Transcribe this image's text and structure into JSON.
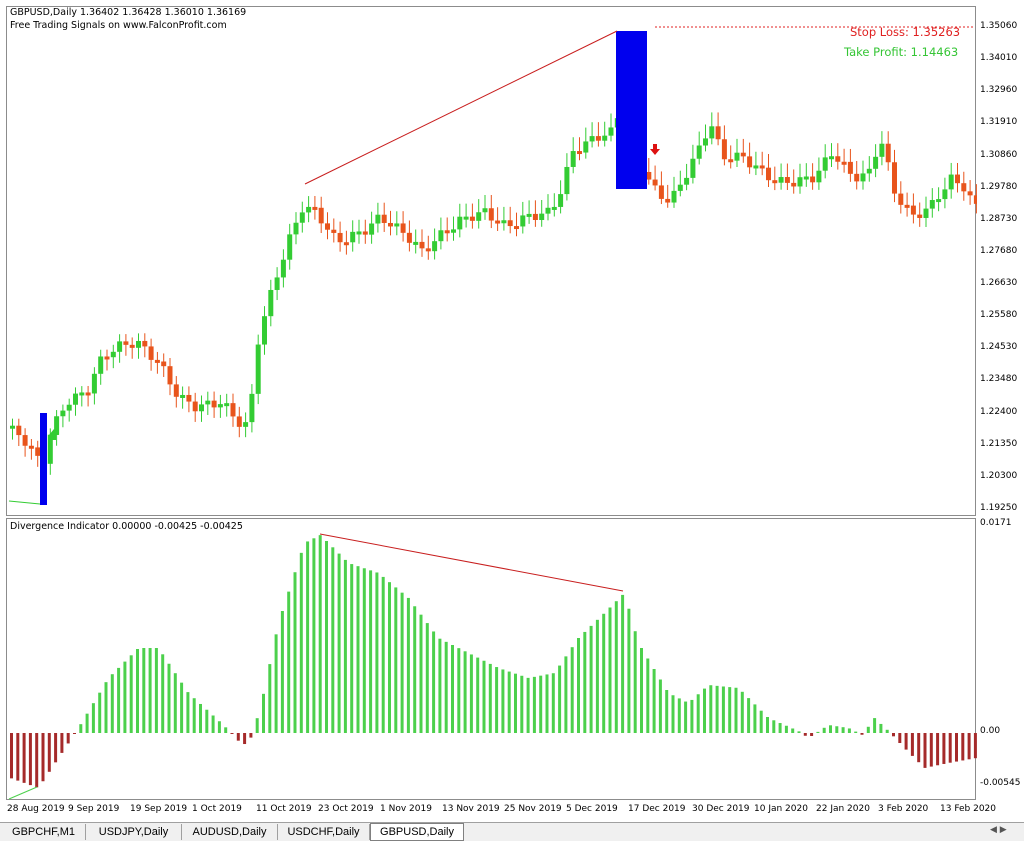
{
  "main_chart": {
    "symbol_line": "GBPUSD,Daily  1.36402 1.36428 1.36010 1.36169",
    "signal_line": "Free Trading Signals on www.FalconProfit.com",
    "stop_loss": "Stop Loss: 1.35263",
    "take_profit": "Take Profit: 1.14463",
    "price_ticks": [
      "1.35060",
      "1.34010",
      "1.32960",
      "1.31910",
      "1.30860",
      "1.29780",
      "1.28730",
      "1.27680",
      "1.26630",
      "1.25580",
      "1.24530",
      "1.23480",
      "1.22400",
      "1.21350",
      "1.20300",
      "1.19250"
    ],
    "colors": {
      "bull": "#33cc33",
      "bear": "#e8541c",
      "signal_box": "#0000ee",
      "trendline": "#c81e1e"
    }
  },
  "indicator": {
    "header": "Divergence Indicator 0.00000 -0.00425 -0.00425",
    "ticks": [
      "0.0171",
      "0.00",
      "-0.00545"
    ],
    "colors": {
      "positive": "#4cd04c",
      "negative": "#a52a2a"
    }
  },
  "time_axis": [
    "28 Aug 2019",
    "9 Sep 2019",
    "19 Sep 2019",
    "1 Oct 2019",
    "11 Oct 2019",
    "23 Oct 2019",
    "1 Nov 2019",
    "13 Nov 2019",
    "25 Nov 2019",
    "5 Dec 2019",
    "17 Dec 2019",
    "30 Dec 2019",
    "10 Jan 2020",
    "22 Jan 2020",
    "3 Feb 2020",
    "13 Feb 2020"
  ],
  "tabs": [
    {
      "label": "GBPCHF,M1",
      "active": false
    },
    {
      "label": "USDJPY,Daily",
      "active": false
    },
    {
      "label": "AUDUSD,Daily",
      "active": false
    },
    {
      "label": "USDCHF,Daily",
      "active": false
    },
    {
      "label": "GBPUSD,Daily",
      "active": true
    }
  ],
  "tab_scroll_icon": "scroll-arrows-icon"
}
